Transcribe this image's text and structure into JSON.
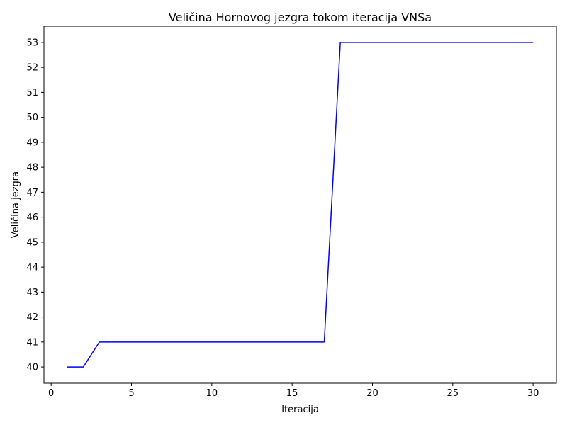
{
  "chart_data": {
    "type": "line",
    "title": "Veličina Hornovog jezgra tokom iteracija VNSa",
    "xlabel": "Iteracija",
    "ylabel": "Veličina jezgra",
    "xlim": [
      -0.45,
      31.45
    ],
    "ylim": [
      39.35,
      53.65
    ],
    "xticks": [
      0,
      5,
      10,
      15,
      20,
      25,
      30
    ],
    "yticks": [
      40,
      41,
      42,
      43,
      44,
      45,
      46,
      47,
      48,
      49,
      50,
      51,
      52,
      53
    ],
    "grid": false,
    "series": [
      {
        "color": "#0000ff",
        "x": [
          1,
          2,
          3,
          4,
          5,
          6,
          7,
          8,
          9,
          10,
          11,
          12,
          13,
          14,
          15,
          16,
          17,
          18,
          19,
          20,
          21,
          22,
          23,
          24,
          25,
          26,
          27,
          28,
          29,
          30
        ],
        "y": [
          40,
          40,
          41,
          41,
          41,
          41,
          41,
          41,
          41,
          41,
          41,
          41,
          41,
          41,
          41,
          41,
          41,
          53,
          53,
          53,
          53,
          53,
          53,
          53,
          53,
          53,
          53,
          53,
          53,
          53
        ]
      }
    ]
  }
}
